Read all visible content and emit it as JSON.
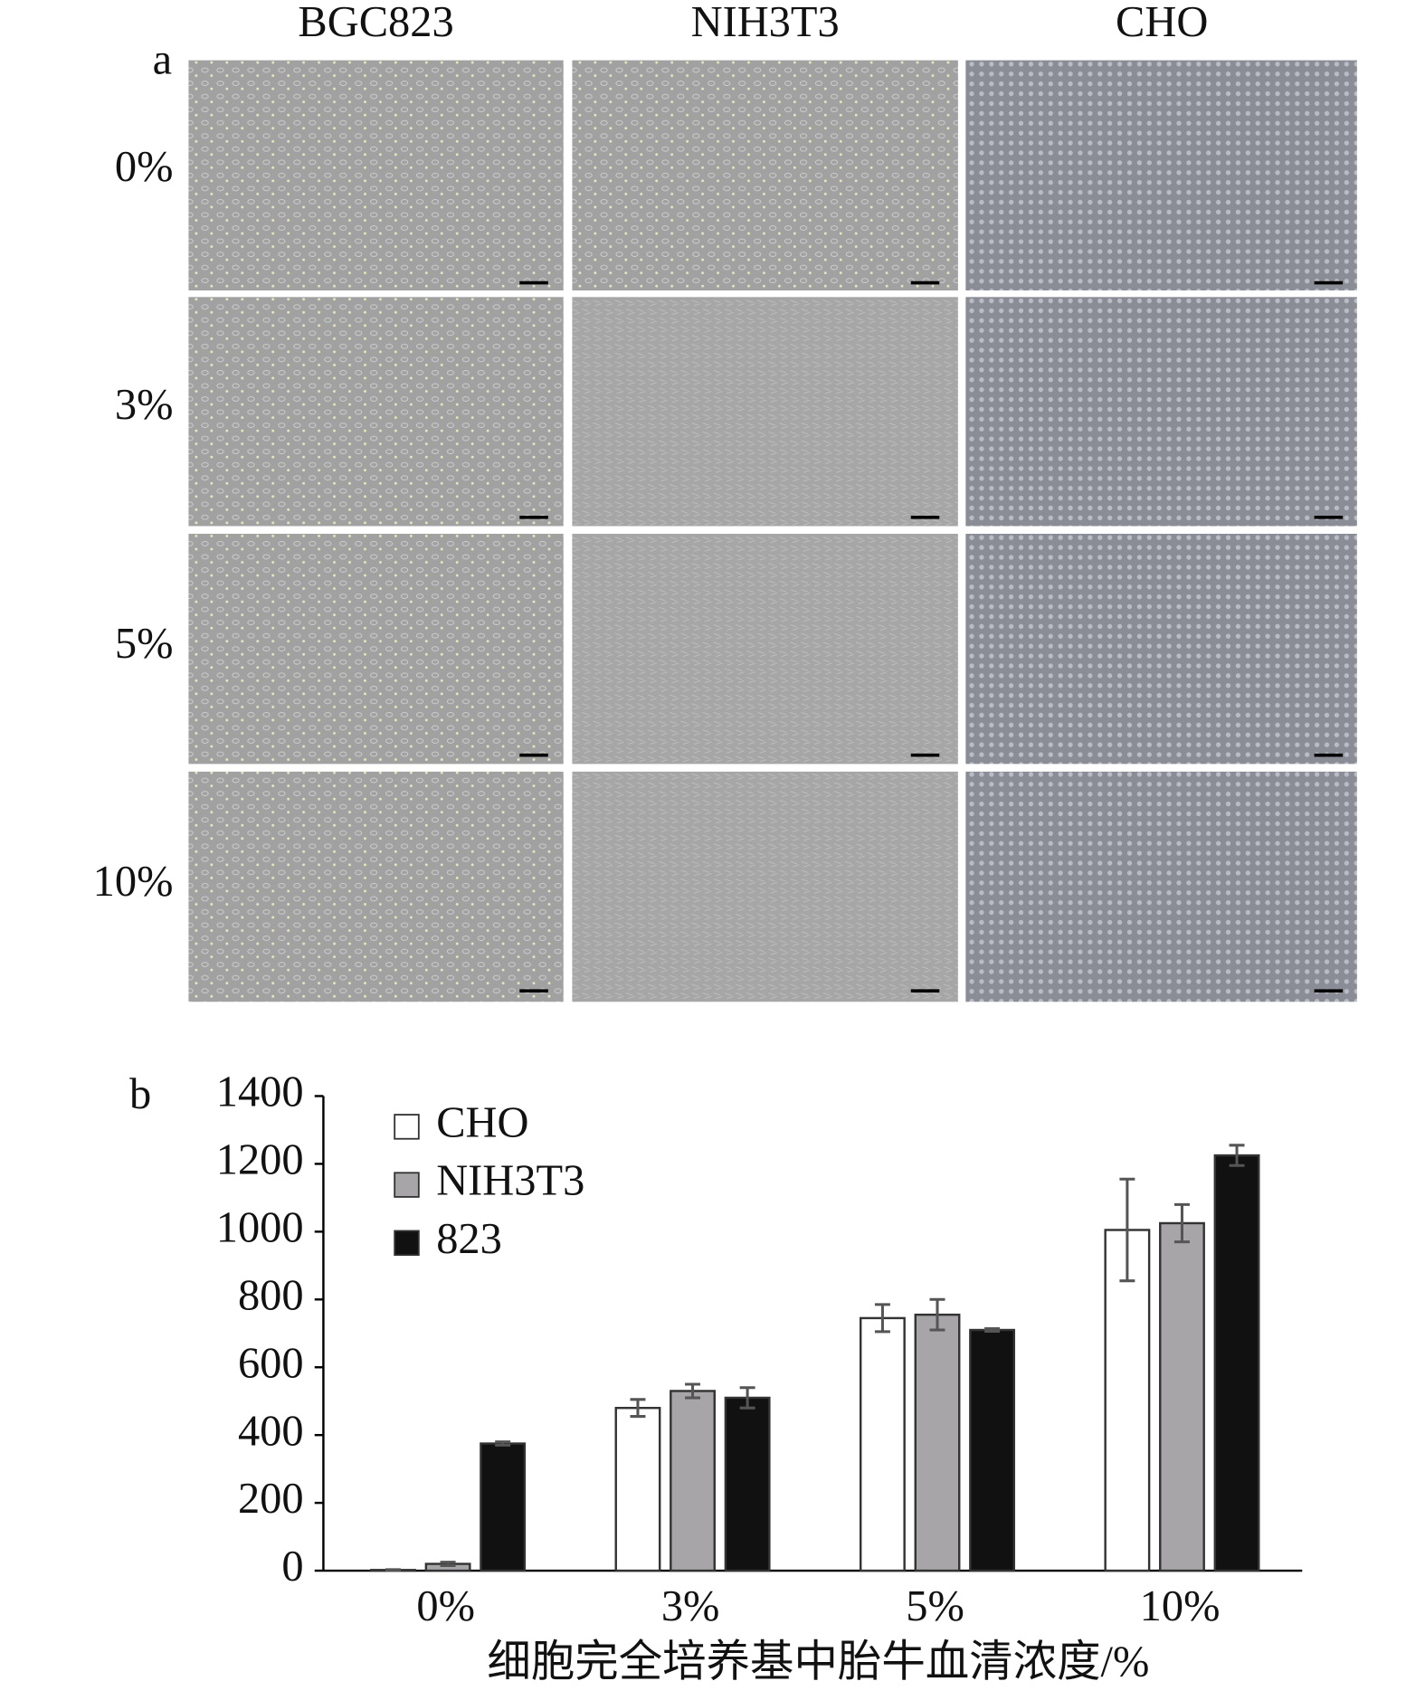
{
  "panel_a": {
    "label": "a",
    "columns": [
      "BGC823",
      "NIH3T3",
      "CHO"
    ],
    "rows": [
      "0%",
      "3%",
      "5%",
      "10%"
    ]
  },
  "chart_data": {
    "type": "bar",
    "panel_label": "b",
    "x_label": "细胞完全培养基中胎牛血清浓度/%",
    "categories": [
      "0%",
      "3%",
      "5%",
      "10%"
    ],
    "series": [
      {
        "name": "CHO",
        "color": "#ffffff",
        "values": [
          2,
          480,
          745,
          1005
        ],
        "errors": [
          1,
          25,
          40,
          150
        ]
      },
      {
        "name": "NIH3T3",
        "color": "#a7a5a8",
        "values": [
          20,
          530,
          755,
          1025
        ],
        "errors": [
          5,
          20,
          45,
          55
        ]
      },
      {
        "name": "823",
        "color": "#111111",
        "values": [
          375,
          510,
          710,
          1225
        ],
        "errors": [
          5,
          30,
          4,
          30
        ]
      }
    ],
    "ylim": [
      0,
      1400
    ],
    "yticks": [
      0,
      200,
      400,
      600,
      800,
      1000,
      1200,
      1400
    ],
    "grid": false,
    "legend": "upper left"
  }
}
